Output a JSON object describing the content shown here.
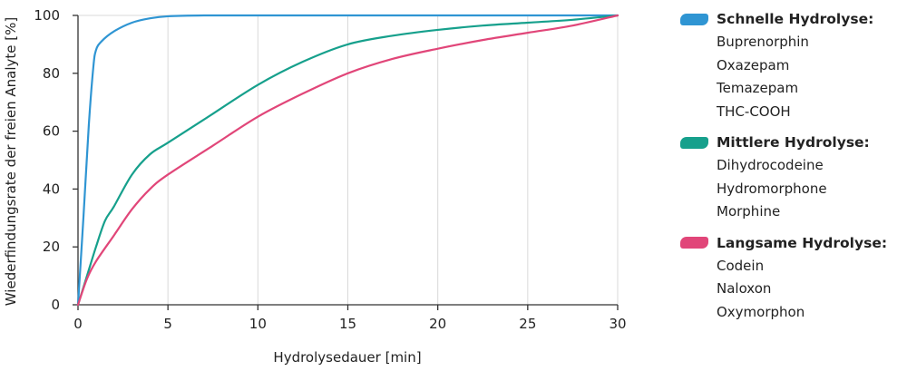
{
  "chart_data": {
    "type": "line",
    "title": "",
    "xlabel": "Hydrolysedauer [min]",
    "ylabel": "Wiederfindungsrate der freien Analyte [%]",
    "xlim": [
      0,
      30
    ],
    "ylim": [
      0,
      100
    ],
    "xticks": [
      "0",
      "5",
      "10",
      "15",
      "20",
      "25",
      "30"
    ],
    "yticks": [
      "0",
      "20",
      "40",
      "60",
      "80",
      "100"
    ],
    "grid": "vertical",
    "legend_position": "right",
    "series": [
      {
        "name": "Schnelle Hydrolyse:",
        "color": "#2f95d3",
        "x": [
          0,
          0.3,
          0.6,
          0.85,
          1.0,
          1.3,
          2,
          3,
          4,
          5,
          7,
          10,
          15,
          20,
          25,
          30
        ],
        "values": [
          0,
          30,
          62,
          82,
          88,
          91,
          94.5,
          97.5,
          99,
          99.7,
          100,
          100,
          100,
          100,
          100,
          100
        ]
      },
      {
        "name": "Mittlere Hydrolyse:",
        "color": "#16a08c",
        "x": [
          0,
          0.5,
          1,
          1.5,
          2,
          3,
          4,
          5,
          7,
          10,
          12.5,
          15,
          17.5,
          20,
          22.5,
          25,
          27.5,
          30
        ],
        "values": [
          0,
          10,
          20,
          29,
          34,
          45,
          52,
          56,
          64,
          76,
          84,
          90,
          93,
          95,
          96.5,
          97.5,
          98.5,
          100
        ]
      },
      {
        "name": "Langsame Hydrolyse:",
        "color": "#e14679",
        "x": [
          0,
          0.5,
          1,
          2,
          3,
          4,
          5,
          7.5,
          10,
          12.5,
          15,
          17.5,
          20,
          22.5,
          25,
          27.5,
          30
        ],
        "values": [
          0,
          9,
          15,
          24,
          33,
          40,
          45,
          55,
          65,
          73,
          80,
          85,
          88.5,
          91.5,
          94,
          96.5,
          100
        ]
      }
    ]
  },
  "legend": {
    "groups": [
      {
        "title": "Schnelle Hydrolyse:",
        "color": "#2f95d3",
        "items": [
          "Buprenorphin",
          "Oxazepam",
          "Temazepam",
          "THC-COOH"
        ]
      },
      {
        "title": "Mittlere Hydrolyse:",
        "color": "#16a08c",
        "items": [
          "Dihydrocodeine",
          "Hydromorphone",
          "Morphine"
        ]
      },
      {
        "title": "Langsame Hydrolyse:",
        "color": "#e14679",
        "items": [
          "Codein",
          "Naloxon",
          "Oxymorphon"
        ]
      }
    ]
  }
}
